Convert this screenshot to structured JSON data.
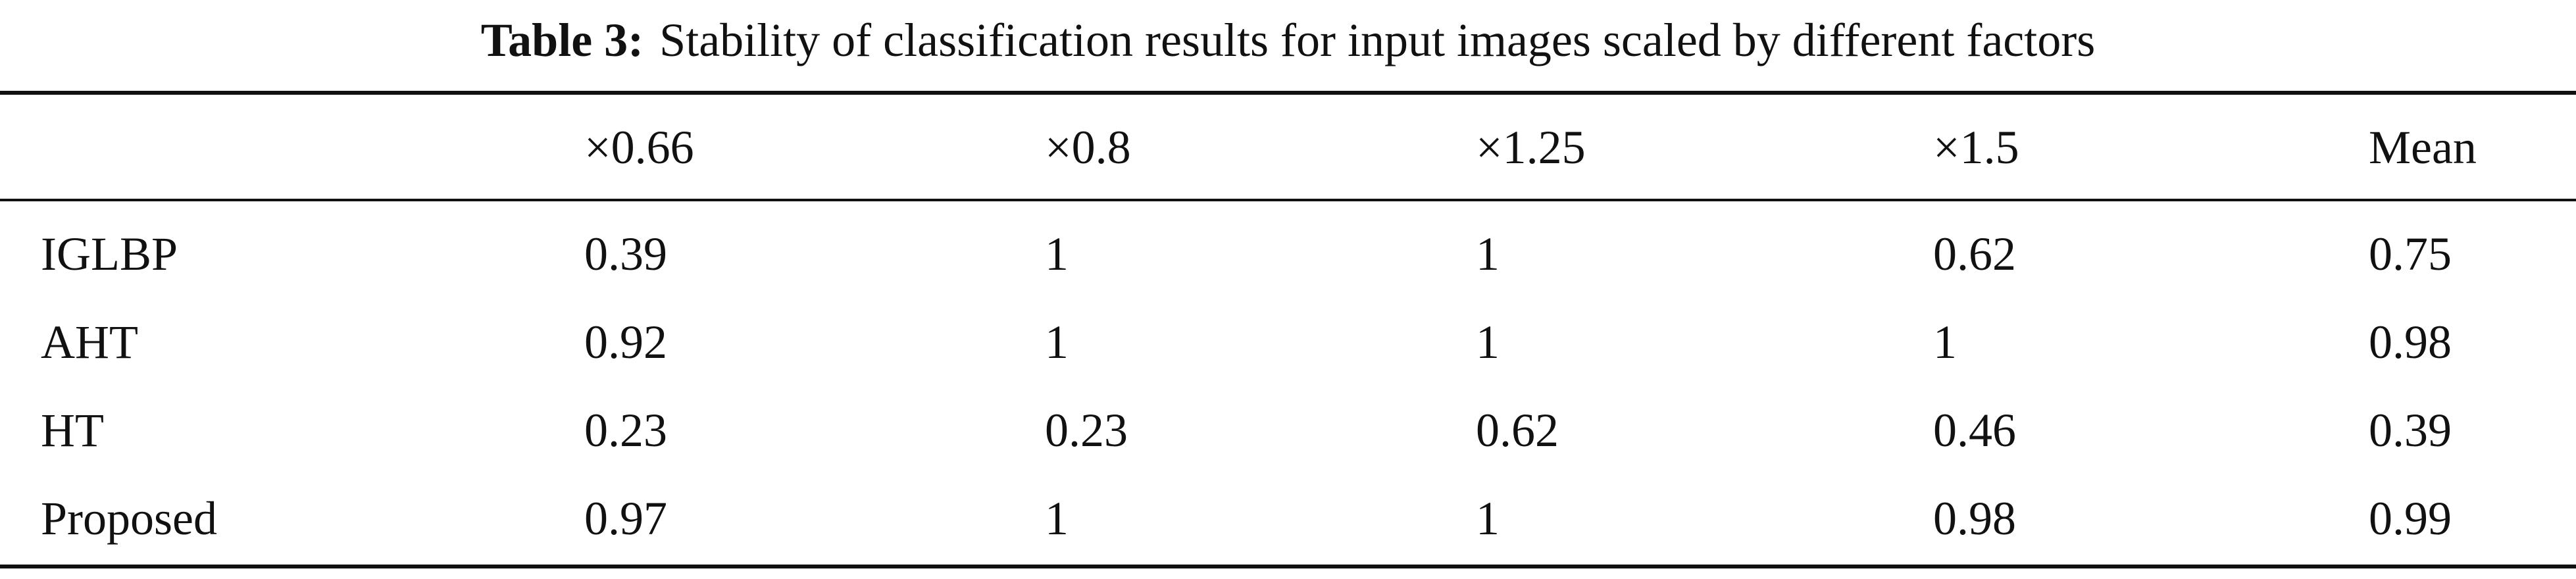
{
  "table": {
    "label": "Table 3:",
    "title": "Stability of classification results for input images scaled by different factors",
    "columns": [
      "×0.66",
      "×0.8",
      "×1.25",
      "×1.5",
      "Mean"
    ],
    "rows": [
      {
        "name": "IGLBP",
        "values": [
          0.39,
          1,
          1,
          0.62,
          0.75
        ]
      },
      {
        "name": "AHT",
        "values": [
          0.92,
          1,
          1,
          1,
          0.98
        ]
      },
      {
        "name": "HT",
        "values": [
          0.23,
          0.23,
          0.62,
          0.46,
          0.39
        ]
      },
      {
        "name": "Proposed",
        "values": [
          0.97,
          1,
          1,
          0.98,
          0.99
        ]
      }
    ]
  }
}
